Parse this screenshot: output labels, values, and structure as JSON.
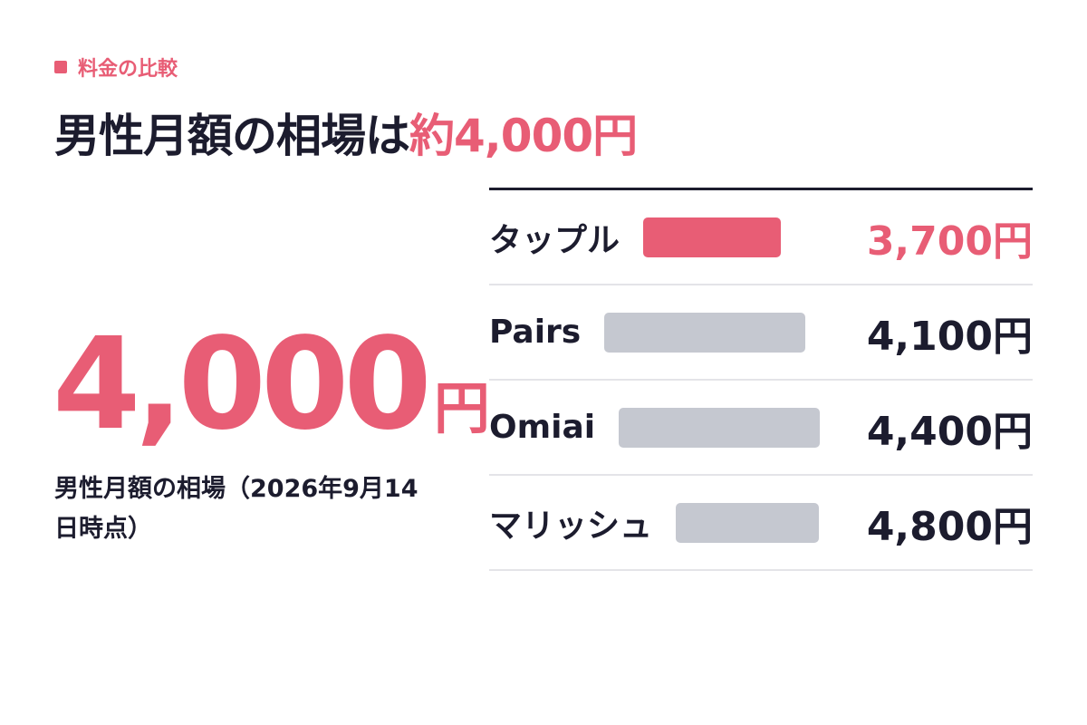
{
  "header": {
    "label": "料金の比較",
    "title": "男性月額の相場は",
    "title_highlight": "約4,000円"
  },
  "summary": {
    "value": "4,000",
    "unit": "円",
    "caption": "男性月額の相場（2026年9月14日時点）"
  },
  "table": {
    "rows": [
      [
        "タップル",
        "3,700円"
      ],
      [
        "Pairs",
        "4,100円"
      ],
      [
        "Omiai",
        "4,400円"
      ],
      [
        "マリッシュ",
        "4,800円"
      ]
    ]
  }
}
